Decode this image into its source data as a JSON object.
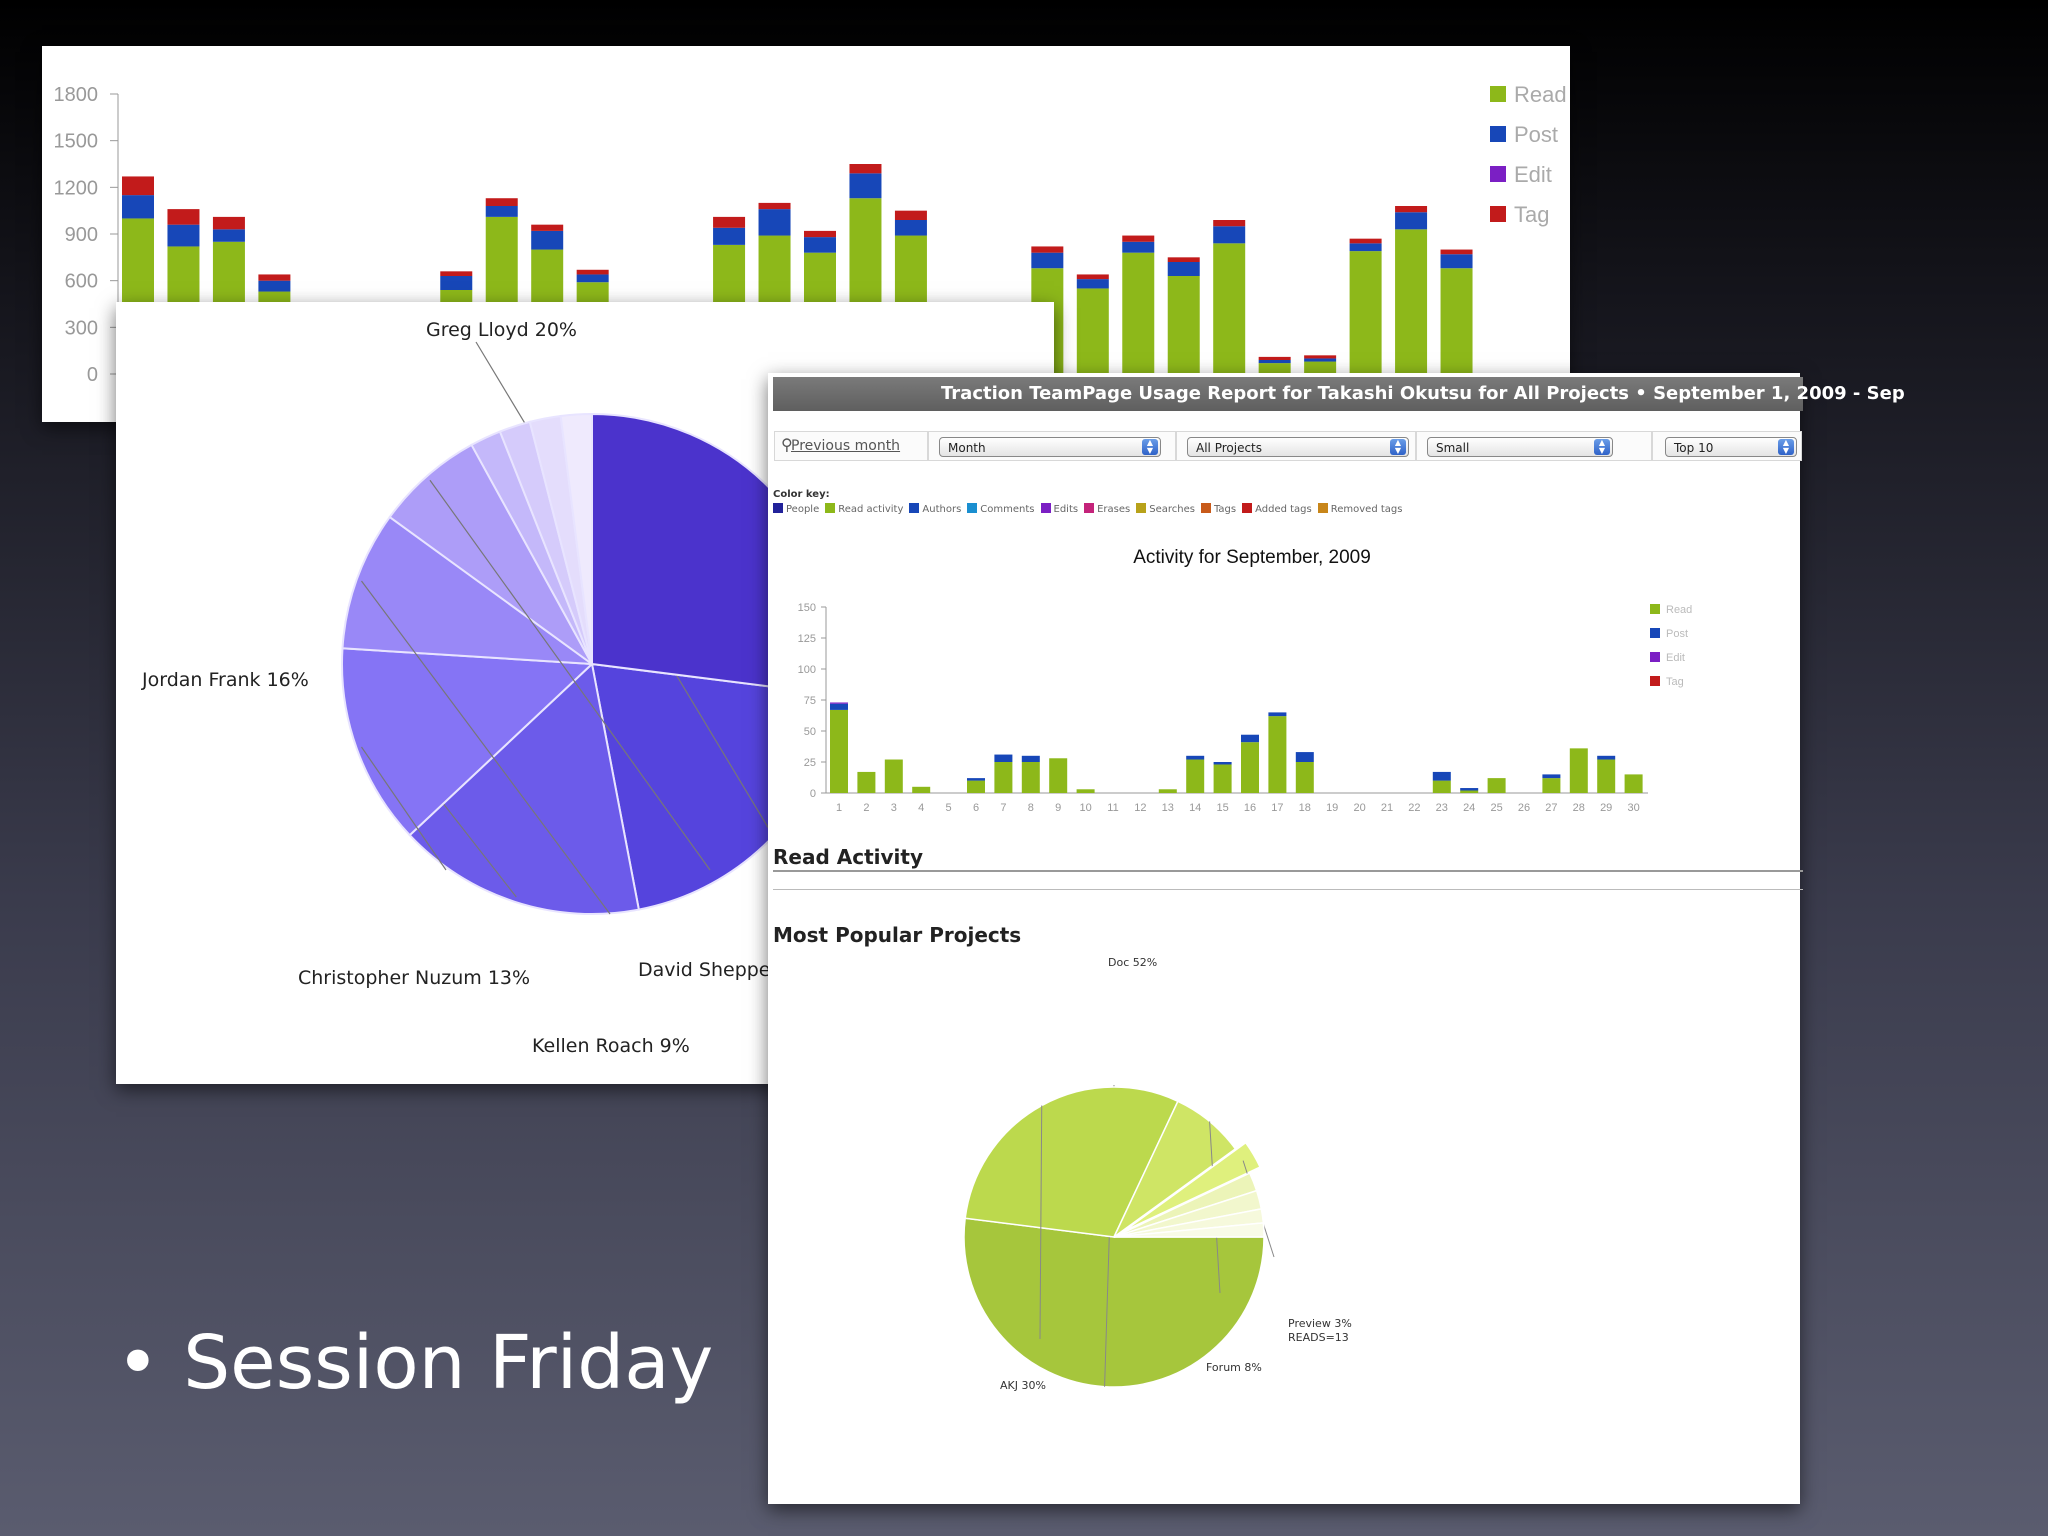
{
  "slide": {
    "bullet_text": "Session Friday"
  },
  "colors": {
    "read": "#8db81a",
    "post": "#1747b8",
    "edit": "#7b1fc4",
    "tag": "#c21b1b"
  },
  "chart_data": [
    {
      "type": "bar",
      "stacked": true,
      "title": "",
      "xlabel": "",
      "ylabel": "",
      "ylim": [
        0,
        1800
      ],
      "yticks": [
        "1800",
        "1500",
        "1200",
        "900",
        "600",
        "300",
        "0"
      ],
      "legend_placement": "top-right",
      "series": [
        {
          "name": "Read",
          "values": [
            1000,
            820,
            850,
            530,
            0,
            0,
            0,
            540,
            1010,
            800,
            590,
            0,
            0,
            830,
            890,
            780,
            1130,
            890,
            0,
            0,
            680,
            550,
            780,
            630,
            840,
            70,
            80,
            790,
            930,
            680
          ]
        },
        {
          "name": "Post",
          "values": [
            150,
            140,
            80,
            70,
            0,
            0,
            0,
            90,
            70,
            120,
            50,
            0,
            0,
            110,
            170,
            100,
            160,
            100,
            0,
            0,
            100,
            60,
            70,
            90,
            110,
            20,
            20,
            50,
            110,
            90
          ]
        },
        {
          "name": "Edit",
          "values": [
            0,
            0,
            0,
            0,
            0,
            0,
            0,
            0,
            0,
            0,
            0,
            0,
            0,
            0,
            0,
            0,
            0,
            0,
            0,
            0,
            0,
            0,
            0,
            0,
            0,
            0,
            0,
            0,
            0,
            0
          ]
        },
        {
          "name": "Tag",
          "values": [
            120,
            100,
            80,
            40,
            0,
            0,
            0,
            30,
            50,
            40,
            30,
            0,
            0,
            70,
            40,
            40,
            60,
            60,
            0,
            0,
            40,
            30,
            40,
            30,
            40,
            20,
            20,
            30,
            40,
            30
          ]
        }
      ]
    },
    {
      "type": "pie",
      "title": "",
      "slices": [
        {
          "label": "Greg Lloyd 20%",
          "value": 20,
          "color": "#5544dd"
        },
        {
          "label": "Jordan Frank 16%",
          "value": 16,
          "color": "#6c5bea"
        },
        {
          "label": "Christopher Nuzum 13%",
          "value": 13,
          "color": "#8574f5"
        },
        {
          "label": "Kellen Roach 9%",
          "value": 9,
          "color": "#9988f7"
        },
        {
          "label": "David Sheppe",
          "value": 7,
          "color": "#ad9df8"
        },
        {
          "label": "",
          "value": 2,
          "color": "#c4b8fa"
        },
        {
          "label": "",
          "value": 2,
          "color": "#d5cbfb"
        },
        {
          "label": "",
          "value": 2,
          "color": "#e4ddfc"
        },
        {
          "label": "",
          "value": 2,
          "color": "#efeafd"
        },
        {
          "label": "",
          "value": 27,
          "color": "#4b33cc"
        }
      ]
    },
    {
      "type": "bar",
      "stacked": true,
      "title": "Activity for September, 2009",
      "xlabel": "",
      "ylabel": "",
      "ylim": [
        0,
        150
      ],
      "yticks": [
        "150",
        "125",
        "100",
        "75",
        "50",
        "25",
        "0"
      ],
      "categories": [
        "1",
        "2",
        "3",
        "4",
        "5",
        "6",
        "7",
        "8",
        "9",
        "10",
        "11",
        "12",
        "13",
        "14",
        "15",
        "16",
        "17",
        "18",
        "19",
        "20",
        "21",
        "22",
        "23",
        "24",
        "25",
        "26",
        "27",
        "28",
        "29",
        "30"
      ],
      "legend_placement": "right",
      "series": [
        {
          "name": "Read",
          "values": [
            67,
            17,
            27,
            5,
            0,
            10,
            25,
            25,
            28,
            3,
            0,
            0,
            3,
            27,
            23,
            41,
            62,
            25,
            0,
            0,
            0,
            0,
            10,
            2,
            12,
            0,
            12,
            36,
            27,
            15
          ]
        },
        {
          "name": "Post",
          "values": [
            5,
            0,
            0,
            0,
            0,
            2,
            6,
            5,
            0,
            0,
            0,
            0,
            0,
            3,
            2,
            6,
            3,
            8,
            0,
            0,
            0,
            0,
            7,
            2,
            0,
            0,
            3,
            0,
            3,
            0
          ]
        },
        {
          "name": "Edit",
          "values": [
            1,
            0,
            0,
            0,
            0,
            0,
            0,
            0,
            0,
            0,
            0,
            0,
            0,
            0,
            0,
            0,
            0,
            0,
            0,
            0,
            0,
            0,
            0,
            0,
            0,
            0,
            0,
            0,
            0,
            0
          ]
        },
        {
          "name": "Tag",
          "values": [
            0,
            0,
            0,
            0,
            0,
            0,
            0,
            0,
            0,
            0,
            0,
            0,
            0,
            0,
            0,
            0,
            0,
            0,
            0,
            0,
            0,
            0,
            0,
            0,
            0,
            0,
            0,
            0,
            0,
            0
          ]
        }
      ]
    },
    {
      "type": "pie",
      "title": "",
      "slices": [
        {
          "label": "Doc 52%",
          "value": 52,
          "color": "#a6c63c"
        },
        {
          "label": "AKJ 30%",
          "value": 30,
          "color": "#bcd94d"
        },
        {
          "label": "Forum 8%",
          "value": 8,
          "color": "#cfe565"
        },
        {
          "label": "Preview 3%\nREADS=13",
          "value": 3,
          "color": "#dff07d"
        },
        {
          "label": "",
          "value": 2,
          "color": "#ecf4b8"
        },
        {
          "label": "",
          "value": 2,
          "color": "#f2f7cd"
        },
        {
          "label": "",
          "value": 1.5,
          "color": "#f6f9dc"
        },
        {
          "label": "",
          "value": 1.5,
          "color": "#f9fbe8"
        }
      ]
    }
  ],
  "report": {
    "title": "Traction TeamPage Usage Report for Takashi Okutsu for All Projects • September 1, 2009 - Sep",
    "prev_month": "Previous month",
    "period_select": "Month",
    "project_select": "All Projects",
    "size_select": "Small",
    "top_select": "Top 10",
    "color_key_title": "Color key:",
    "color_key": [
      {
        "label": "People",
        "color": "#22229a"
      },
      {
        "label": "Read activity",
        "color": "#8db81a"
      },
      {
        "label": "Authors",
        "color": "#1747b8"
      },
      {
        "label": "Comments",
        "color": "#1a8fd0"
      },
      {
        "label": "Edits",
        "color": "#7b1fc4"
      },
      {
        "label": "Erases",
        "color": "#c4237a"
      },
      {
        "label": "Searches",
        "color": "#b8a21a"
      },
      {
        "label": "Tags",
        "color": "#c85a1a"
      },
      {
        "label": "Added tags",
        "color": "#c21b1b"
      },
      {
        "label": "Removed tags",
        "color": "#c8861a"
      }
    ],
    "read_activity_title": "Read Activity",
    "popular_projects_title": "Most Popular Projects"
  },
  "legend": {
    "labels": [
      "Read",
      "Post",
      "Edit",
      "Tag"
    ]
  }
}
